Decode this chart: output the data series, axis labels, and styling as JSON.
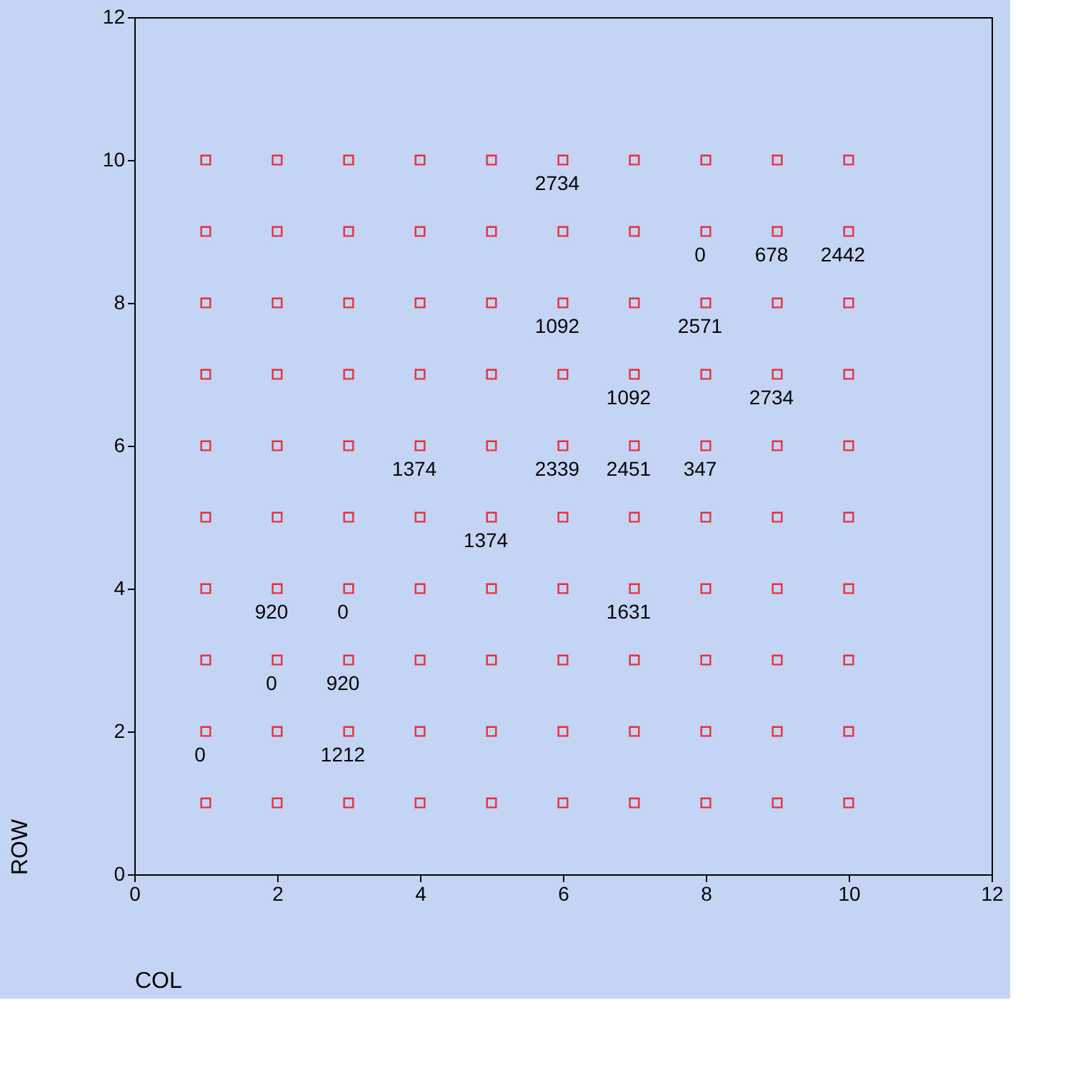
{
  "chart_data": {
    "type": "scatter",
    "xlabel": "COL",
    "ylabel": "ROW",
    "xlim": [
      0,
      12
    ],
    "ylim": [
      0,
      12
    ],
    "xticks": [
      0,
      2,
      4,
      6,
      8,
      10,
      12
    ],
    "yticks": [
      0,
      2,
      4,
      6,
      8,
      10,
      12
    ],
    "grid": false,
    "legend": false,
    "marker": "square",
    "series": [
      {
        "color": "#e8303c",
        "x": [
          1,
          2,
          3,
          4,
          5,
          6,
          7,
          8,
          9,
          10,
          1,
          2,
          3,
          4,
          5,
          6,
          7,
          8,
          9,
          10,
          1,
          2,
          3,
          4,
          5,
          6,
          7,
          8,
          9,
          10,
          1,
          2,
          3,
          4,
          5,
          6,
          7,
          8,
          9,
          10,
          1,
          2,
          3,
          4,
          5,
          6,
          7,
          8,
          9,
          10,
          1,
          2,
          3,
          4,
          5,
          6,
          7,
          8,
          9,
          10,
          1,
          2,
          3,
          4,
          5,
          6,
          7,
          8,
          9,
          10,
          1,
          2,
          3,
          4,
          5,
          6,
          7,
          8,
          9,
          10,
          1,
          2,
          3,
          4,
          5,
          6,
          7,
          8,
          9,
          10,
          1,
          2,
          3,
          4,
          5,
          6,
          7,
          8,
          9,
          10
        ],
        "values": [
          1,
          1,
          1,
          1,
          1,
          1,
          1,
          1,
          1,
          1,
          2,
          2,
          2,
          2,
          2,
          2,
          2,
          2,
          2,
          2,
          3,
          3,
          3,
          3,
          3,
          3,
          3,
          3,
          3,
          3,
          4,
          4,
          4,
          4,
          4,
          4,
          4,
          4,
          4,
          4,
          5,
          5,
          5,
          5,
          5,
          5,
          5,
          5,
          5,
          5,
          6,
          6,
          6,
          6,
          6,
          6,
          6,
          6,
          6,
          6,
          7,
          7,
          7,
          7,
          7,
          7,
          7,
          7,
          7,
          7,
          8,
          8,
          8,
          8,
          8,
          8,
          8,
          8,
          8,
          8,
          9,
          9,
          9,
          9,
          9,
          9,
          9,
          9,
          9,
          9,
          10,
          10,
          10,
          10,
          10,
          10,
          10,
          10,
          10,
          10
        ]
      }
    ],
    "annotations": [
      {
        "text": "0",
        "x": 1,
        "y": 2
      },
      {
        "text": "1212",
        "x": 3,
        "y": 2
      },
      {
        "text": "0",
        "x": 2,
        "y": 3
      },
      {
        "text": "920",
        "x": 3,
        "y": 3
      },
      {
        "text": "920",
        "x": 2,
        "y": 4
      },
      {
        "text": "0",
        "x": 3,
        "y": 4
      },
      {
        "text": "1631",
        "x": 7,
        "y": 4
      },
      {
        "text": "1374",
        "x": 5,
        "y": 5
      },
      {
        "text": "1374",
        "x": 4,
        "y": 6
      },
      {
        "text": "2339",
        "x": 6,
        "y": 6
      },
      {
        "text": "2451",
        "x": 7,
        "y": 6
      },
      {
        "text": "347",
        "x": 8,
        "y": 6
      },
      {
        "text": "1092",
        "x": 7,
        "y": 7
      },
      {
        "text": "2734",
        "x": 9,
        "y": 7
      },
      {
        "text": "1092",
        "x": 6,
        "y": 8
      },
      {
        "text": "2571",
        "x": 8,
        "y": 8
      },
      {
        "text": "0",
        "x": 8,
        "y": 9
      },
      {
        "text": "678",
        "x": 9,
        "y": 9
      },
      {
        "text": "2442",
        "x": 10,
        "y": 9
      },
      {
        "text": "2734",
        "x": 6,
        "y": 10
      }
    ]
  }
}
